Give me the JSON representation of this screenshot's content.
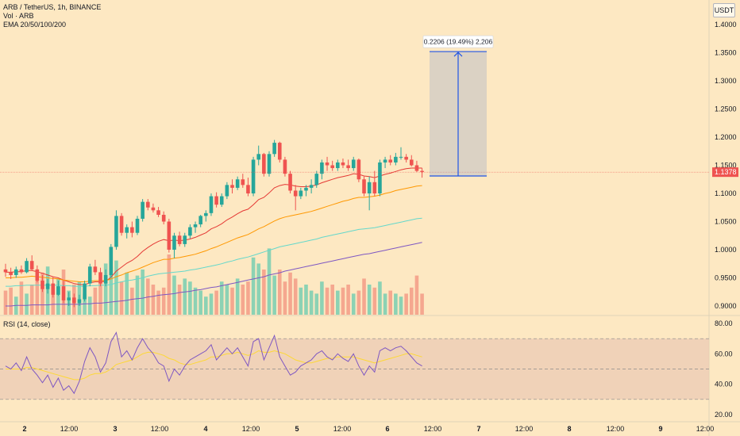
{
  "legend": {
    "symbol": "ARB / TetherUS, 1h, BINANCE",
    "volume": "Vol · ARB",
    "ema": "EMA 20/50/100/200"
  },
  "rsi_title": "RSI (14, close)",
  "currency_button": "USDT",
  "current_price_label": "1.1378",
  "measure_label": "0.2206 (19.49%) 2,206",
  "colors": {
    "background": "#fde8c2",
    "up": "#26a69a",
    "down": "#ef5350",
    "ema20": "#e53935",
    "ema50": "#ff9800",
    "ema100": "#64d8cb",
    "ema200": "#7e57c2",
    "rsi_line": "#7e57c2",
    "rsi_ma": "#fdd835",
    "measure": "#1e53e5"
  },
  "chart_data": [
    {
      "type": "candlestick",
      "price_axis_ticks": [
        "1.4000",
        "1.3500",
        "1.3000",
        "1.2500",
        "1.2000",
        "1.1500",
        "1.1000",
        "1.0500",
        "1.0000",
        "0.9500",
        "0.9000"
      ],
      "time_axis_ticks": [
        "2",
        "12:00",
        "3",
        "12:00",
        "4",
        "12:00",
        "5",
        "12:00",
        "6",
        "12:00",
        "7",
        "12:00",
        "8",
        "12:00",
        "9",
        "12:00"
      ],
      "ylim": [
        0.88,
        1.42
      ],
      "current_price": 1.1378,
      "measure": {
        "from": 1.131,
        "to": 1.352,
        "label": "0.2206 (19.49%) 2,206"
      },
      "candles": [
        [
          0.965,
          0.975,
          0.952,
          0.96
        ],
        [
          0.96,
          0.968,
          0.948,
          0.955
        ],
        [
          0.955,
          0.97,
          0.95,
          0.965
        ],
        [
          0.965,
          0.972,
          0.957,
          0.96
        ],
        [
          0.96,
          0.985,
          0.958,
          0.98
        ],
        [
          0.98,
          0.99,
          0.962,
          0.965
        ],
        [
          0.965,
          0.972,
          0.942,
          0.945
        ],
        [
          0.945,
          0.955,
          0.925,
          0.93
        ],
        [
          0.93,
          0.948,
          0.922,
          0.94
        ],
        [
          0.94,
          0.952,
          0.915,
          0.92
        ],
        [
          0.92,
          0.945,
          0.918,
          0.935
        ],
        [
          0.935,
          0.945,
          0.905,
          0.91
        ],
        [
          0.91,
          0.925,
          0.9,
          0.915
        ],
        [
          0.915,
          0.922,
          0.898,
          0.905
        ],
        [
          0.905,
          0.92,
          0.9,
          0.912
        ],
        [
          0.912,
          0.945,
          0.908,
          0.94
        ],
        [
          0.94,
          0.975,
          0.935,
          0.97
        ],
        [
          0.97,
          0.982,
          0.955,
          0.96
        ],
        [
          0.96,
          0.968,
          0.935,
          0.94
        ],
        [
          0.94,
          0.965,
          0.935,
          0.955
        ],
        [
          0.955,
          1.01,
          0.95,
          1.005
        ],
        [
          1.005,
          1.07,
          1.0,
          1.06
        ],
        [
          1.06,
          1.065,
          1.025,
          1.03
        ],
        [
          1.03,
          1.045,
          1.02,
          1.04
        ],
        [
          1.04,
          1.05,
          1.022,
          1.03
        ],
        [
          1.03,
          1.06,
          1.026,
          1.055
        ],
        [
          1.055,
          1.09,
          1.05,
          1.085
        ],
        [
          1.085,
          1.09,
          1.07,
          1.075
        ],
        [
          1.075,
          1.082,
          1.066,
          1.07
        ],
        [
          1.07,
          1.076,
          1.058,
          1.062
        ],
        [
          1.062,
          1.068,
          1.045,
          1.05
        ],
        [
          1.05,
          1.055,
          0.995,
          1.0
        ],
        [
          1.0,
          1.03,
          0.985,
          1.025
        ],
        [
          1.025,
          1.032,
          1.006,
          1.01
        ],
        [
          1.01,
          1.03,
          1.005,
          1.025
        ],
        [
          1.025,
          1.045,
          1.02,
          1.04
        ],
        [
          1.04,
          1.05,
          1.03,
          1.045
        ],
        [
          1.045,
          1.062,
          1.04,
          1.06
        ],
        [
          1.06,
          1.07,
          1.05,
          1.065
        ],
        [
          1.065,
          1.1,
          1.06,
          1.095
        ],
        [
          1.095,
          1.102,
          1.075,
          1.08
        ],
        [
          1.08,
          1.1,
          1.076,
          1.095
        ],
        [
          1.095,
          1.12,
          1.09,
          1.115
        ],
        [
          1.115,
          1.125,
          1.1,
          1.11
        ],
        [
          1.11,
          1.13,
          1.106,
          1.125
        ],
        [
          1.125,
          1.135,
          1.11,
          1.115
        ],
        [
          1.115,
          1.128,
          1.095,
          1.1
        ],
        [
          1.1,
          1.165,
          1.095,
          1.16
        ],
        [
          1.16,
          1.185,
          1.15,
          1.17
        ],
        [
          1.17,
          1.172,
          1.13,
          1.135
        ],
        [
          1.135,
          1.175,
          1.13,
          1.17
        ],
        [
          1.17,
          1.195,
          1.165,
          1.19
        ],
        [
          1.19,
          1.192,
          1.155,
          1.16
        ],
        [
          1.16,
          1.165,
          1.13,
          1.135
        ],
        [
          1.135,
          1.14,
          1.1,
          1.105
        ],
        [
          1.105,
          1.115,
          1.07,
          1.095
        ],
        [
          1.095,
          1.11,
          1.09,
          1.105
        ],
        [
          1.105,
          1.115,
          1.095,
          1.11
        ],
        [
          1.11,
          1.125,
          1.1,
          1.115
        ],
        [
          1.115,
          1.14,
          1.11,
          1.135
        ],
        [
          1.135,
          1.16,
          1.125,
          1.155
        ],
        [
          1.155,
          1.165,
          1.14,
          1.15
        ],
        [
          1.15,
          1.158,
          1.14,
          1.145
        ],
        [
          1.145,
          1.16,
          1.14,
          1.155
        ],
        [
          1.155,
          1.162,
          1.145,
          1.15
        ],
        [
          1.15,
          1.16,
          1.14,
          1.145
        ],
        [
          1.145,
          1.165,
          1.14,
          1.16
        ],
        [
          1.16,
          1.162,
          1.12,
          1.125
        ],
        [
          1.125,
          1.13,
          1.095,
          1.1
        ],
        [
          1.1,
          1.13,
          1.07,
          1.12
        ],
        [
          1.12,
          1.14,
          1.095,
          1.1
        ],
        [
          1.1,
          1.16,
          1.095,
          1.155
        ],
        [
          1.155,
          1.165,
          1.145,
          1.16
        ],
        [
          1.16,
          1.168,
          1.15,
          1.155
        ],
        [
          1.155,
          1.172,
          1.15,
          1.165
        ],
        [
          1.165,
          1.182,
          1.16,
          1.165
        ],
        [
          1.165,
          1.17,
          1.155,
          1.16
        ],
        [
          1.16,
          1.168,
          1.148,
          1.15
        ],
        [
          1.15,
          1.158,
          1.138,
          1.14
        ],
        [
          1.14,
          1.145,
          1.128,
          1.138
        ]
      ],
      "volumes": [
        16,
        18,
        12,
        22,
        14,
        20,
        26,
        28,
        32,
        18,
        24,
        30,
        16,
        20,
        22,
        14,
        12,
        18,
        22,
        34,
        32,
        36,
        22,
        28,
        18,
        26,
        30,
        24,
        20,
        16,
        18,
        40,
        26,
        20,
        24,
        22,
        18,
        16,
        12,
        14,
        16,
        22,
        20,
        18,
        24,
        20,
        22,
        38,
        34,
        30,
        44,
        26,
        30,
        22,
        28,
        24,
        18,
        20,
        16,
        14,
        22,
        18,
        20,
        16,
        18,
        20,
        14,
        16,
        24,
        20,
        18,
        22,
        14,
        16,
        14,
        12,
        14,
        18,
        26,
        14
      ],
      "ema_lines": [
        {
          "name": "EMA 20",
          "values": [
            0.96,
            0.96,
            0.961,
            0.961,
            0.963,
            0.963,
            0.961,
            0.958,
            0.955,
            0.952,
            0.95,
            0.946,
            0.943,
            0.94,
            0.938,
            0.938,
            0.941,
            0.943,
            0.943,
            0.944,
            0.951,
            0.962,
            0.969,
            0.976,
            0.981,
            0.988,
            0.997,
            1.004,
            1.01,
            1.015,
            1.018,
            1.016,
            1.017,
            1.016,
            1.017,
            1.019,
            1.022,
            1.026,
            1.03,
            1.037,
            1.041,
            1.046,
            1.053,
            1.058,
            1.064,
            1.069,
            1.072,
            1.08,
            1.089,
            1.093,
            1.101,
            1.11,
            1.114,
            1.116,
            1.115,
            1.113,
            1.112,
            1.112,
            1.113,
            1.115,
            1.119,
            1.122,
            1.125,
            1.128,
            1.13,
            1.132,
            1.135,
            1.134,
            1.131,
            1.13,
            1.128,
            1.131,
            1.134,
            1.136,
            1.139,
            1.142,
            1.144,
            1.145,
            1.145,
            1.145
          ]
        },
        {
          "name": "EMA 50",
          "values": [
            0.95,
            0.95,
            0.951,
            0.951,
            0.952,
            0.953,
            0.952,
            0.951,
            0.95,
            0.949,
            0.948,
            0.946,
            0.945,
            0.944,
            0.943,
            0.943,
            0.944,
            0.945,
            0.945,
            0.945,
            0.948,
            0.952,
            0.955,
            0.959,
            0.962,
            0.965,
            0.969,
            0.973,
            0.977,
            0.98,
            0.983,
            0.983,
            0.985,
            0.986,
            0.988,
            0.99,
            0.992,
            0.995,
            0.998,
            1.002,
            1.005,
            1.009,
            1.013,
            1.017,
            1.021,
            1.024,
            1.027,
            1.032,
            1.037,
            1.041,
            1.046,
            1.051,
            1.055,
            1.058,
            1.06,
            1.062,
            1.064,
            1.066,
            1.068,
            1.071,
            1.074,
            1.077,
            1.08,
            1.083,
            1.086,
            1.088,
            1.091,
            1.093,
            1.093,
            1.094,
            1.095,
            1.097,
            1.1,
            1.102,
            1.105,
            1.107,
            1.109,
            1.111,
            1.113,
            1.114
          ]
        },
        {
          "name": "EMA 100",
          "values": [
            0.935,
            0.935,
            0.936,
            0.936,
            0.937,
            0.937,
            0.937,
            0.937,
            0.937,
            0.937,
            0.937,
            0.936,
            0.936,
            0.935,
            0.935,
            0.935,
            0.936,
            0.936,
            0.937,
            0.937,
            0.938,
            0.941,
            0.943,
            0.945,
            0.946,
            0.948,
            0.95,
            0.953,
            0.955,
            0.957,
            0.958,
            0.959,
            0.96,
            0.961,
            0.962,
            0.964,
            0.965,
            0.967,
            0.969,
            0.971,
            0.973,
            0.975,
            0.978,
            0.98,
            0.983,
            0.985,
            0.987,
            0.99,
            0.993,
            0.996,
            0.999,
            1.002,
            1.005,
            1.007,
            1.009,
            1.011,
            1.013,
            1.015,
            1.017,
            1.019,
            1.022,
            1.024,
            1.026,
            1.028,
            1.03,
            1.032,
            1.034,
            1.036,
            1.037,
            1.038,
            1.039,
            1.041,
            1.043,
            1.045,
            1.047,
            1.049,
            1.051,
            1.053,
            1.055,
            1.056
          ]
        },
        {
          "name": "EMA 200",
          "values": [
            0.9,
            0.9,
            0.901,
            0.901,
            0.901,
            0.902,
            0.902,
            0.902,
            0.902,
            0.903,
            0.903,
            0.903,
            0.903,
            0.903,
            0.903,
            0.904,
            0.904,
            0.905,
            0.905,
            0.906,
            0.907,
            0.908,
            0.909,
            0.91,
            0.912,
            0.913,
            0.914,
            0.916,
            0.917,
            0.919,
            0.92,
            0.921,
            0.922,
            0.924,
            0.925,
            0.926,
            0.928,
            0.929,
            0.931,
            0.933,
            0.934,
            0.936,
            0.938,
            0.94,
            0.942,
            0.944,
            0.946,
            0.948,
            0.95,
            0.952,
            0.955,
            0.957,
            0.959,
            0.962,
            0.964,
            0.966,
            0.968,
            0.97,
            0.972,
            0.974,
            0.976,
            0.978,
            0.98,
            0.982,
            0.984,
            0.986,
            0.988,
            0.99,
            0.992,
            0.993,
            0.995,
            0.997,
            0.999,
            1.001,
            1.003,
            1.005,
            1.007,
            1.009,
            1.011,
            1.013
          ]
        }
      ]
    },
    {
      "type": "line",
      "name": "RSI (14, close)",
      "ylim": [
        20,
        80
      ],
      "y_ticks": [
        "80.00",
        "60.00",
        "40.00",
        "20.00"
      ],
      "band": [
        30,
        70
      ],
      "midline": 50,
      "rsi": [
        52,
        50,
        54,
        49,
        58,
        50,
        46,
        41,
        46,
        38,
        44,
        36,
        39,
        34,
        42,
        55,
        64,
        58,
        48,
        54,
        68,
        74,
        58,
        62,
        56,
        64,
        70,
        64,
        60,
        54,
        52,
        42,
        50,
        46,
        52,
        56,
        58,
        60,
        62,
        66,
        56,
        60,
        64,
        60,
        64,
        58,
        52,
        68,
        70,
        56,
        64,
        72,
        58,
        52,
        46,
        48,
        52,
        54,
        56,
        60,
        62,
        58,
        56,
        60,
        57,
        55,
        60,
        52,
        46,
        52,
        48,
        62,
        64,
        62,
        64,
        65,
        62,
        58,
        54,
        52
      ],
      "rsi_ma": [
        50,
        50,
        50,
        50,
        51,
        51,
        50,
        49,
        48,
        47,
        46,
        45,
        44,
        43,
        43,
        44,
        46,
        47,
        47,
        48,
        50,
        53,
        54,
        55,
        56,
        58,
        60,
        61,
        61,
        60,
        59,
        57,
        56,
        54,
        53,
        53,
        54,
        55,
        56,
        58,
        58,
        59,
        60,
        60,
        61,
        60,
        59,
        60,
        62,
        61,
        61,
        62,
        61,
        60,
        58,
        56,
        55,
        54,
        54,
        55,
        56,
        57,
        57,
        58,
        58,
        58,
        58,
        57,
        56,
        55,
        54,
        55,
        56,
        57,
        58,
        59,
        60,
        60,
        59,
        58
      ]
    }
  ]
}
